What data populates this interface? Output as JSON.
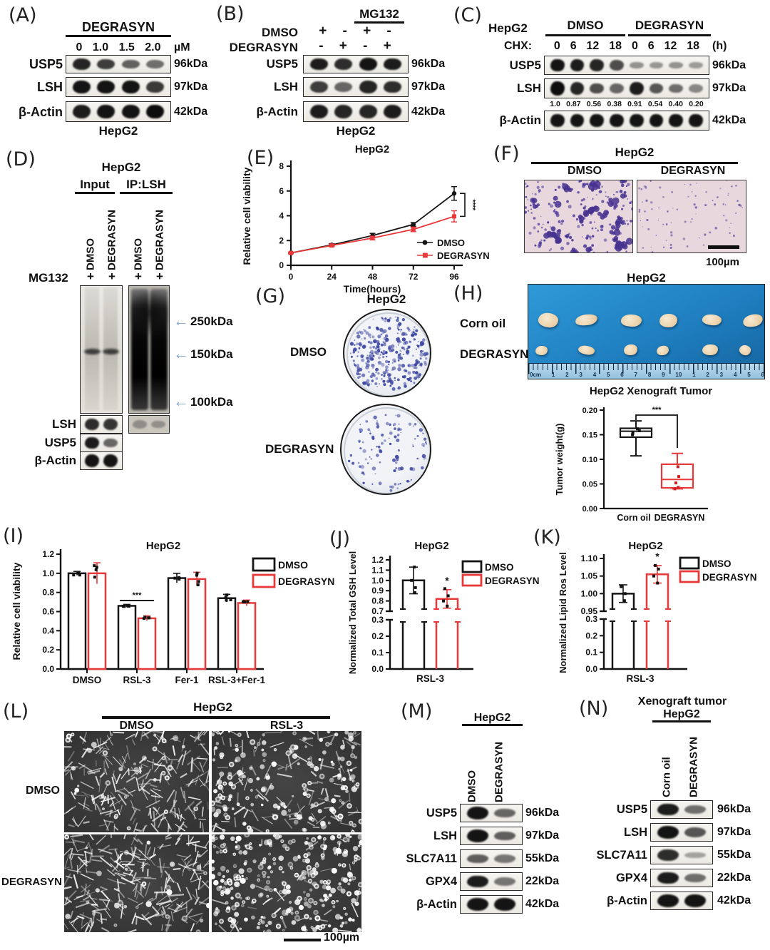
{
  "colors": {
    "black": "#151515",
    "accent_red": "#e8393a",
    "arrow_blue": "#7aa3d6",
    "dish_dot": "#4049a3",
    "crystal_violet": "#4f3a9c"
  },
  "icons": {
    "marker_arrow": "←"
  },
  "panels": {
    "A": {
      "label": "(A)",
      "group_title": "DEGRASYN",
      "doses": [
        "0",
        "1.0",
        "1.5",
        "2.0"
      ],
      "dose_unit": "µM",
      "footer": "HepG2",
      "rows": [
        {
          "protein": "USP5",
          "kda": "96kDa",
          "bands": [
            0.85,
            0.7,
            0.48,
            0.4
          ]
        },
        {
          "protein": "LSH",
          "kda": "97kDa",
          "bands": [
            0.95,
            0.95,
            0.95,
            0.72
          ]
        },
        {
          "protein": "β-Actin",
          "kda": "42kDa",
          "bands": [
            0.9,
            0.95,
            0.95,
            1
          ]
        }
      ]
    },
    "B": {
      "label": "(B)",
      "group_title": "MG132",
      "footer": "HepG2",
      "condition_rows": [
        {
          "label": "DMSO",
          "signs": [
            "+",
            "-",
            "+",
            "-"
          ]
        },
        {
          "label": "DEGRASYN",
          "signs": [
            "-",
            "+",
            "-",
            "+"
          ]
        }
      ],
      "rows": [
        {
          "protein": "USP5",
          "kda": "96kDa",
          "bands": [
            0.9,
            0.8,
            0.95,
            0.9
          ]
        },
        {
          "protein": "LSH",
          "kda": "97kDa",
          "bands": [
            0.7,
            0.45,
            0.85,
            0.8
          ]
        },
        {
          "protein": "β-Actin",
          "kda": "42kDa",
          "bands": [
            0.9,
            0.85,
            0.85,
            0.9
          ]
        }
      ]
    },
    "C": {
      "label": "(C)",
      "cell_line": "HepG2",
      "groups": [
        "DMSO",
        "DEGRASYN"
      ],
      "chx_label": "CHX:",
      "timepoints": [
        "0",
        "6",
        "12",
        "18",
        "0",
        "6",
        "12",
        "18"
      ],
      "time_unit": "(h)",
      "rows": [
        {
          "protein": "USP5",
          "kda": "96kDa",
          "bands": [
            0.95,
            0.9,
            0.85,
            0.6,
            0.18,
            0.15,
            0.18,
            0.12
          ]
        },
        {
          "protein": "LSH",
          "kda": "97kDa",
          "bands": [
            1,
            0.85,
            0.6,
            0.45,
            0.9,
            0.55,
            0.4,
            0.25
          ],
          "quant": [
            "1.0",
            "0.87",
            "0.56",
            "0.38",
            "0.91",
            "0.54",
            "0.40",
            "0.20"
          ]
        },
        {
          "protein": "β-Actin",
          "kda": "42kDa",
          "bands": [
            0.95,
            0.95,
            0.95,
            0.95,
            0.95,
            0.95,
            0.95,
            0.95
          ]
        }
      ]
    },
    "D": {
      "label": "(D)",
      "cell_line": "HepG2",
      "col_groups": [
        "Input",
        "IP:LSH"
      ],
      "lane_labels": [
        "DMSO",
        "DEGRASYN",
        "DMSO",
        "DEGRASYN"
      ],
      "mg132_label": "MG132",
      "mg132_signs": [
        "+",
        "+",
        "+",
        "+"
      ],
      "markers": [
        "250kDa",
        "150kDa",
        "100kDa"
      ],
      "bottom_rows": [
        {
          "protein": "LSH",
          "input_bands": [
            0.8,
            0.75
          ],
          "ip_bands": [
            0.35,
            0.3
          ]
        },
        {
          "protein": "USP5",
          "input_bands": [
            0.9,
            0.45
          ]
        },
        {
          "protein": "β-Actin",
          "input_bands": [
            0.95,
            0.95
          ]
        }
      ]
    },
    "E": {
      "label": "(E)"
    },
    "F": {
      "label": "(F)",
      "title": "HepG2",
      "cols": [
        "DMSO",
        "DEGRASYN"
      ],
      "scale_label": "100µm"
    },
    "G": {
      "label": "(G)",
      "title": "HepG2",
      "row_labels": [
        "DMSO",
        "DEGRASYN"
      ]
    },
    "H": {
      "label": "(H)",
      "title": "HepG2",
      "row_labels": [
        "Corn oil",
        "DEGRASYN"
      ],
      "ruler_numbers": [
        "0cm",
        "1",
        "2",
        "3",
        "4",
        "5",
        "6",
        "7",
        "8",
        "9",
        "10",
        "1",
        "2",
        "3",
        "4",
        "5",
        "6"
      ],
      "chart_title": "HepG2 Xenograft Tumor"
    },
    "I": {
      "label": "(I)"
    },
    "J": {
      "label": "(J)"
    },
    "K": {
      "label": "(K)"
    },
    "L": {
      "label": "(L)",
      "title": "HepG2",
      "cols": [
        "DMSO",
        "RSL-3"
      ],
      "row_labels": [
        "DMSO",
        "DEGRASYN"
      ],
      "scale_label": "100µm"
    },
    "M": {
      "label": "(M)",
      "title": "HepG2",
      "lanes": [
        "DMSO",
        "DEGRASYN"
      ],
      "rows": [
        {
          "protein": "USP5",
          "kda": "96kDa",
          "bands": [
            0.95,
            0.45
          ]
        },
        {
          "protein": "LSH",
          "kda": "97kDa",
          "bands": [
            0.95,
            0.5
          ]
        },
        {
          "protein": "SLC7A11",
          "kda": "55kDa",
          "bands": [
            0.5,
            0.35
          ]
        },
        {
          "protein": "GPX4",
          "kda": "22kDa",
          "bands": [
            0.9,
            0.35
          ]
        },
        {
          "protein": "β-Actin",
          "kda": "42kDa",
          "bands": [
            0.95,
            0.95
          ]
        }
      ]
    },
    "N": {
      "label": "(N)",
      "title_line1": "Xenograft tumor",
      "title_line2": "HepG2",
      "lanes": [
        "Corn oil",
        "DEGRASYN"
      ],
      "rows": [
        {
          "protein": "USP5",
          "kda": "96kDa",
          "bands": [
            0.9,
            0.4
          ]
        },
        {
          "protein": "LSH",
          "kda": "97kDa",
          "bands": [
            0.95,
            0.55
          ]
        },
        {
          "protein": "SLC7A11",
          "kda": "55kDa",
          "bands": [
            0.8,
            0.08
          ]
        },
        {
          "protein": "GPX4",
          "kda": "22kDa",
          "bands": [
            0.9,
            0.4
          ]
        },
        {
          "protein": "β-Actin",
          "kda": "42kDa",
          "bands": [
            0.95,
            0.95
          ]
        }
      ]
    }
  },
  "chart_data": [
    {
      "id": "E",
      "type": "line",
      "title": "HepG2",
      "xlabel": "Time(hours)",
      "ylabel": "Relative cell viability",
      "x": [
        0,
        24,
        48,
        72,
        96
      ],
      "ylim": [
        0,
        8
      ],
      "yticks": [
        0,
        2,
        4,
        6,
        8
      ],
      "series": [
        {
          "name": "DMSO",
          "color": "#151515",
          "marker": "circle",
          "values": [
            1.0,
            1.65,
            2.4,
            3.3,
            5.8
          ],
          "errors": [
            0.06,
            0.1,
            0.18,
            0.15,
            0.55
          ]
        },
        {
          "name": "DEGRASYN",
          "color": "#e8393a",
          "marker": "square",
          "values": [
            1.0,
            1.6,
            2.2,
            2.9,
            3.95
          ],
          "errors": [
            0.06,
            0.1,
            0.15,
            0.18,
            0.45
          ]
        }
      ],
      "significance": "****",
      "legend_position": "inside-bottom-right"
    },
    {
      "id": "H",
      "type": "box",
      "title": "HepG2 Xenograft Tumor",
      "ylabel": "Tumor weight(g)",
      "ylim": [
        0,
        0.2
      ],
      "yticks": [
        0.0,
        0.05,
        0.1,
        0.15,
        0.2
      ],
      "significance": "***",
      "boxes": [
        {
          "name": "Corn oil",
          "color": "#151515",
          "min": 0.107,
          "q1": 0.145,
          "median": 0.157,
          "q3": 0.163,
          "max": 0.178,
          "points": [
            0.15,
            0.153,
            0.158,
            0.162
          ]
        },
        {
          "name": "DEGRASYN",
          "color": "#e8393a",
          "min": 0.04,
          "q1": 0.042,
          "median": 0.059,
          "q3": 0.09,
          "max": 0.112,
          "points": [
            0.04,
            0.043,
            0.052,
            0.065,
            0.085
          ]
        }
      ]
    },
    {
      "id": "I",
      "type": "grouped_bar",
      "title": "HepG2",
      "ylabel": "Relative cell viability",
      "categories": [
        "DMSO",
        "RSL-3",
        "Fer-1",
        "RSL-3+Fer-1"
      ],
      "ylim": [
        0,
        1.2
      ],
      "yticks": [
        0.0,
        0.2,
        0.4,
        0.6,
        0.8,
        1.0,
        1.2
      ],
      "series": [
        {
          "name": "DMSO",
          "color": "#151515",
          "values": [
            1.0,
            0.66,
            0.95,
            0.74
          ],
          "errors": [
            0.02,
            0.015,
            0.05,
            0.04
          ]
        },
        {
          "name": "DEGRASYN",
          "color": "#e8393a",
          "values": [
            1.0,
            0.53,
            0.94,
            0.69
          ],
          "errors": [
            0.11,
            0.025,
            0.07,
            0.03
          ]
        }
      ],
      "significance": {
        "label": "***",
        "category": "RSL-3"
      },
      "legend_position": "top-right"
    },
    {
      "id": "J",
      "type": "broken_bar",
      "title": "HepG2",
      "ylabel": "Normalized Total GSH Level",
      "category": "RSL-3",
      "lower_ticks": [
        0.0,
        0.1,
        0.2,
        0.3
      ],
      "upper_ticks": [
        0.7,
        0.8,
        0.9,
        1.0,
        1.1,
        1.2
      ],
      "upper_range": [
        0.7,
        1.2
      ],
      "upper_decimals": 1,
      "series": [
        {
          "name": "DMSO",
          "color": "#151515",
          "value": 1.0,
          "error": 0.13,
          "points": [
            0.88,
            0.93,
            1.0,
            1.13
          ]
        },
        {
          "name": "DEGRASYN",
          "color": "#e8393a",
          "value": 0.82,
          "error": 0.09,
          "points": [
            0.75,
            0.8,
            0.85,
            0.92
          ],
          "significance": "*"
        }
      ]
    },
    {
      "id": "K",
      "type": "broken_bar",
      "title": "HepG2",
      "ylabel": "Normalized Lipid Ros Level",
      "category": "RSL-3",
      "lower_ticks": [
        0.0,
        0.1,
        0.2,
        0.3
      ],
      "upper_ticks": [
        0.95,
        1.0,
        1.05,
        1.1
      ],
      "upper_range": [
        0.95,
        1.1
      ],
      "upper_decimals": 2,
      "series": [
        {
          "name": "DMSO",
          "color": "#151515",
          "value": 1.0,
          "error": 0.025,
          "points": [
            0.98,
            1.0,
            1.02
          ]
        },
        {
          "name": "DEGRASYN",
          "color": "#e8393a",
          "value": 1.055,
          "error": 0.025,
          "points": [
            1.03,
            1.05,
            1.07,
            1.08
          ],
          "significance": "*"
        }
      ]
    }
  ]
}
